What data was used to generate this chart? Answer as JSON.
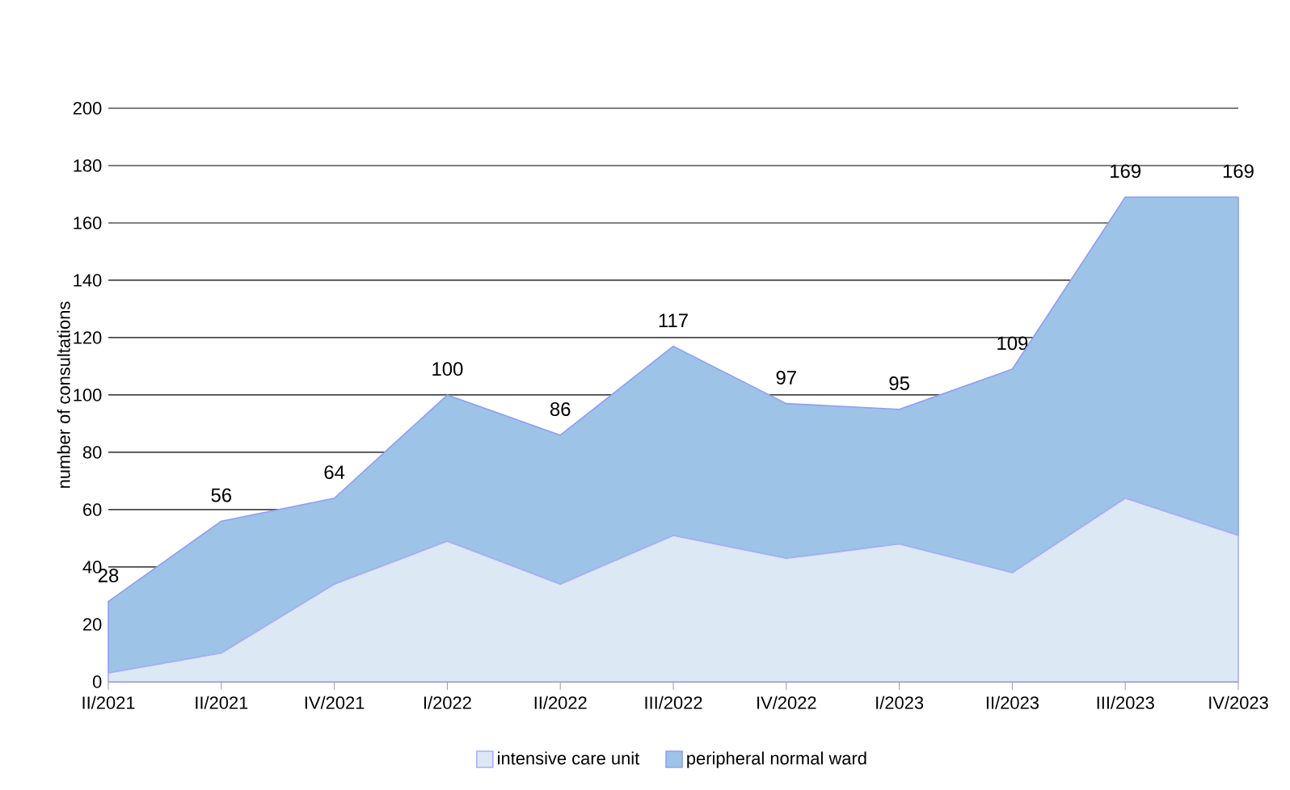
{
  "chart_data": {
    "type": "area",
    "stacked": true,
    "ylabel": "number of consultations",
    "categories": [
      "II/2021",
      "II/2021",
      "IV/2021",
      "I/2022",
      "II/2022",
      "III/2022",
      "IV/2022",
      "I/2023",
      "II/2023",
      "III/2023",
      "IV/2023"
    ],
    "series": [
      {
        "name": "intensive care unit",
        "color": "#dde8f5",
        "values": [
          3,
          10,
          34,
          49,
          34,
          51,
          43,
          48,
          38,
          64,
          51
        ]
      },
      {
        "name": "peripheral normal ward",
        "color": "#9dc3e6",
        "values": [
          25,
          46,
          30,
          51,
          52,
          66,
          54,
          47,
          71,
          105,
          118
        ]
      }
    ],
    "totals": [
      "28",
      "56",
      "64",
      "100",
      "86",
      "117",
      "97",
      "95",
      "109",
      "169",
      "169"
    ],
    "ylim": [
      0,
      200
    ],
    "yticks": [
      0,
      20,
      40,
      60,
      80,
      100,
      120,
      140,
      160,
      180,
      200
    ],
    "grid": "y",
    "legend": "bottom"
  }
}
